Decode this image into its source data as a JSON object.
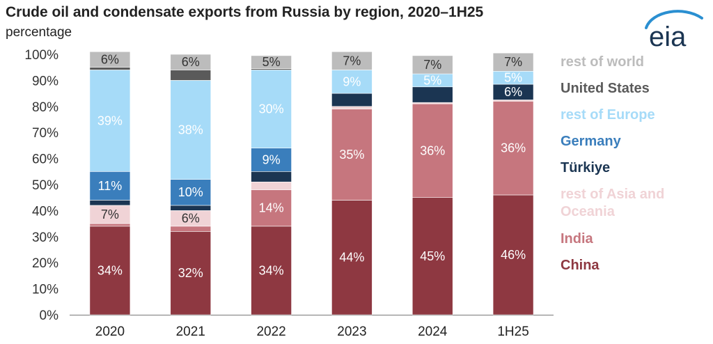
{
  "title": "Crude oil and condensate exports from Russia by region, 2020–1H25",
  "subtitle": "percentage",
  "logo_text": "eia",
  "colors": {
    "China": "#8e3841",
    "India": "#c6767e",
    "rest of Asia and Oceania": "#f0d3d6",
    "Türkiye": "#1b3552",
    "Germany": "#3a7ebc",
    "rest of Europe": "#a6dbf8",
    "United States": "#5a5a5a",
    "rest of world": "#bcbcbc"
  },
  "chart_data": {
    "type": "bar",
    "stacked": true,
    "categories": [
      "2020",
      "2021",
      "2022",
      "2023",
      "2024",
      "1H25"
    ],
    "ylim": [
      0,
      100
    ],
    "yticks": [
      "0%",
      "10%",
      "20%",
      "30%",
      "40%",
      "50%",
      "60%",
      "70%",
      "80%",
      "90%",
      "100%"
    ],
    "grid": false,
    "legend_position": "right",
    "series": [
      {
        "name": "China",
        "values": [
          34,
          32,
          34,
          44,
          45,
          46
        ],
        "labels": [
          "34%",
          "32%",
          "34%",
          "44%",
          "45%",
          "46%"
        ]
      },
      {
        "name": "India",
        "values": [
          1,
          2,
          14,
          35,
          36,
          36
        ],
        "labels": [
          "",
          "",
          "14%",
          "35%",
          "36%",
          "36%"
        ]
      },
      {
        "name": "rest of Asia and Oceania",
        "values": [
          7,
          6,
          3,
          1,
          0.5,
          0.5
        ],
        "labels": [
          "7%",
          "6%",
          "",
          "",
          "",
          ""
        ]
      },
      {
        "name": "Türkiye",
        "values": [
          2,
          2,
          4,
          5,
          6,
          6
        ],
        "labels": [
          "",
          "",
          "",
          "",
          "",
          "6%"
        ]
      },
      {
        "name": "Germany",
        "values": [
          11,
          10,
          9,
          0,
          0,
          0
        ],
        "labels": [
          "11%",
          "10%",
          "9%",
          "",
          "",
          ""
        ]
      },
      {
        "name": "rest of Europe",
        "values": [
          39,
          38,
          30,
          9,
          5,
          5
        ],
        "labels": [
          "39%",
          "38%",
          "30%",
          "9%",
          "5%",
          "5%"
        ]
      },
      {
        "name": "United States",
        "values": [
          1,
          4,
          0.5,
          0,
          0,
          0
        ],
        "labels": [
          "",
          "",
          "",
          "",
          "",
          ""
        ]
      },
      {
        "name": "rest of world",
        "values": [
          6,
          6,
          5,
          7,
          7,
          7
        ],
        "labels": [
          "6%",
          "6%",
          "5%",
          "7%",
          "7%",
          "7%"
        ]
      }
    ],
    "legend": [
      "rest of world",
      "United States",
      "rest of Europe",
      "Germany",
      "Türkiye",
      "rest of Asia and Oceania",
      "India",
      "China"
    ]
  }
}
